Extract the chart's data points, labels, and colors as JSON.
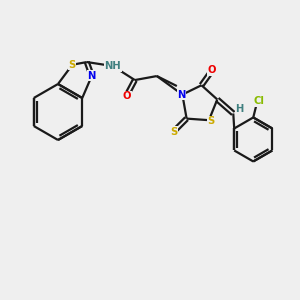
{
  "bg_color": "#efefef",
  "bond_color": "#1a1a1a",
  "atom_colors": {
    "S": "#ccaa00",
    "N": "#0000ee",
    "O": "#ee0000",
    "Cl": "#88bb00",
    "H": "#408080",
    "C": "#1a1a1a"
  },
  "figsize": [
    3.0,
    3.0
  ],
  "dpi": 100,
  "lw": 1.6,
  "fs": 7.2
}
